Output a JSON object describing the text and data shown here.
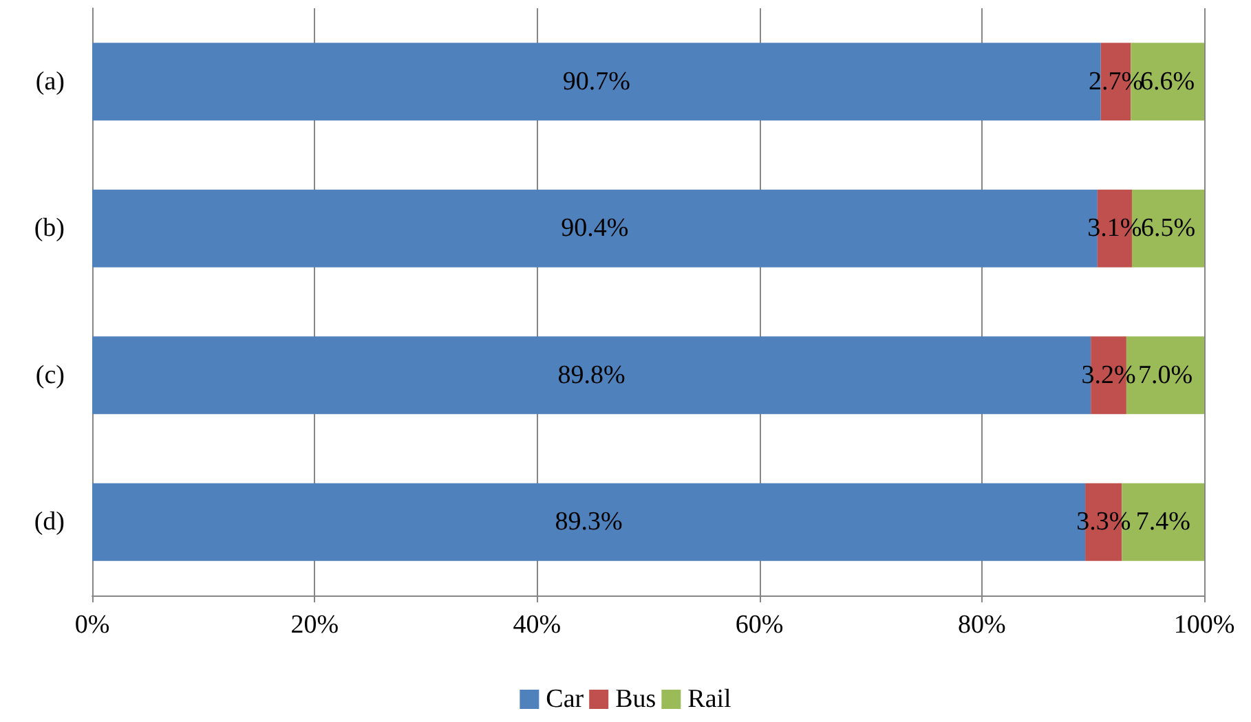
{
  "chart_data": {
    "type": "bar",
    "orientation": "horizontal",
    "stacked": true,
    "categories": [
      "(a)",
      "(b)",
      "(c)",
      "(d)"
    ],
    "series": [
      {
        "name": "Car",
        "color": "#4f81bd",
        "values": [
          90.7,
          90.4,
          89.8,
          89.3
        ],
        "value_labels": [
          "90.7%",
          "90.4%",
          "89.8%",
          "89.3%"
        ]
      },
      {
        "name": "Bus",
        "color": "#c0504d",
        "values": [
          2.7,
          3.1,
          3.2,
          3.3
        ],
        "value_labels": [
          "2.7%",
          "3.1%",
          "3.2%",
          "3.3%"
        ]
      },
      {
        "name": "Rail",
        "color": "#9bbb59",
        "values": [
          6.6,
          6.5,
          7.0,
          7.4
        ],
        "value_labels": [
          "6.6%",
          "6.5%",
          "7.0%",
          "7.4%"
        ]
      }
    ],
    "xlim": [
      0,
      100
    ],
    "xticks": [
      {
        "value": 0,
        "label": "0%"
      },
      {
        "value": 20,
        "label": "20%"
      },
      {
        "value": 40,
        "label": "40%"
      },
      {
        "value": 60,
        "label": "60%"
      },
      {
        "value": 80,
        "label": "80%"
      },
      {
        "value": 100,
        "label": "100%"
      }
    ],
    "grid": "x",
    "legend": "bottom"
  }
}
